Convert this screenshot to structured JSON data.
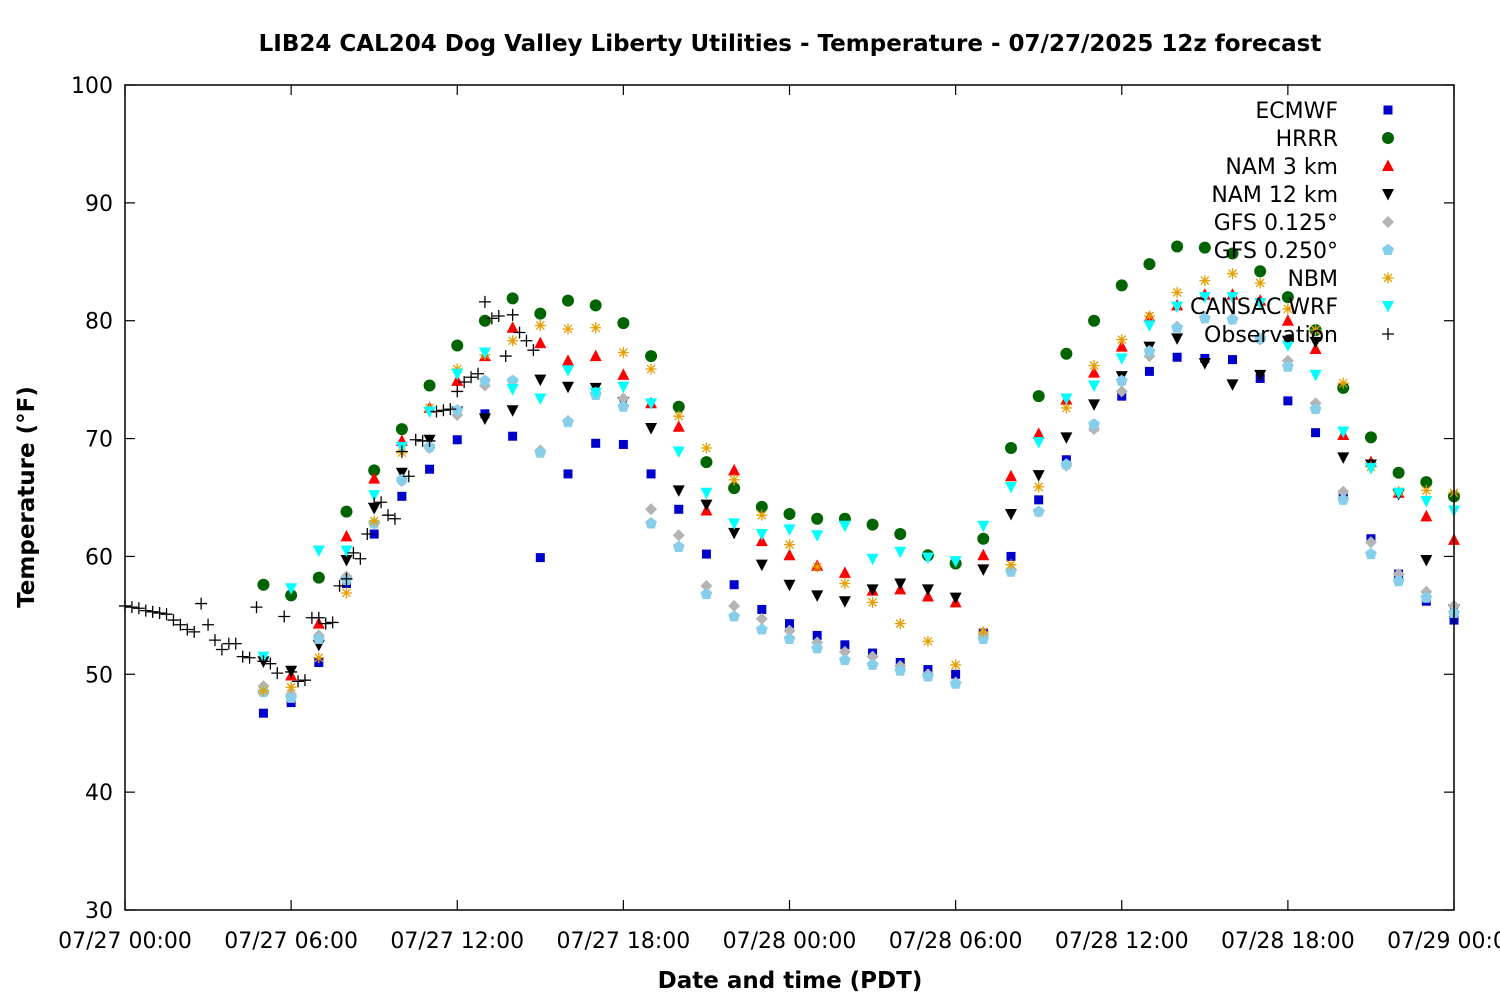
{
  "chart_data": {
    "type": "scatter",
    "title": "LIB24 CAL204 Dog Valley Liberty Utilities - Temperature - 07/27/2025 12z forecast",
    "xlabel": "Date and time (PDT)",
    "ylabel": "Temperature (°F)",
    "xlim": [
      0,
      48
    ],
    "ylim": [
      30,
      100
    ],
    "x_units": "hours since 07/27 00:00 PDT",
    "xticks": [
      {
        "x": 0,
        "label": "07/27 00:00"
      },
      {
        "x": 6,
        "label": "07/27 06:00"
      },
      {
        "x": 12,
        "label": "07/27 12:00"
      },
      {
        "x": 18,
        "label": "07/27 18:00"
      },
      {
        "x": 24,
        "label": "07/28 00:00"
      },
      {
        "x": 30,
        "label": "07/28 06:00"
      },
      {
        "x": 36,
        "label": "07/28 12:00"
      },
      {
        "x": 42,
        "label": "07/28 18:00"
      },
      {
        "x": 48,
        "label": "07/29 00:00"
      }
    ],
    "yticks": [
      30,
      40,
      50,
      60,
      70,
      80,
      90,
      100
    ],
    "grid": false,
    "legend_position": "top-right",
    "series": [
      {
        "name": "ECMWF",
        "color": "#0000cc",
        "marker": "square",
        "x": [
          5,
          6,
          7,
          8,
          9,
          10,
          11,
          12,
          13,
          14,
          15,
          16,
          17,
          18,
          19,
          20,
          21,
          22,
          23,
          24,
          25,
          26,
          27,
          28,
          29,
          30,
          31,
          32,
          33,
          34,
          35,
          36,
          37,
          38,
          39,
          40,
          41,
          42,
          43,
          44,
          45,
          46,
          47,
          48
        ],
        "y": [
          46.7,
          47.6,
          51.0,
          57.7,
          61.9,
          65.1,
          67.4,
          69.9,
          72.1,
          70.2,
          59.9,
          67.0,
          69.6,
          69.5,
          67.0,
          64.0,
          60.2,
          57.6,
          55.5,
          54.3,
          53.3,
          52.5,
          51.8,
          51.0,
          50.4,
          50.0,
          53.5,
          60.0,
          64.8,
          68.2,
          71.0,
          73.6,
          75.7,
          76.9,
          76.8,
          76.7,
          75.1,
          73.2,
          70.5,
          65.0,
          61.5,
          58.5,
          56.2,
          54.6
        ]
      },
      {
        "name": "HRRR",
        "color": "#006400",
        "marker": "circle",
        "x": [
          5,
          6,
          7,
          8,
          9,
          10,
          11,
          12,
          13,
          14,
          15,
          16,
          17,
          18,
          19,
          20,
          21,
          22,
          23,
          24,
          25,
          26,
          27,
          28,
          29,
          30,
          31,
          32,
          33,
          34,
          35,
          36,
          37,
          38,
          39,
          40,
          41,
          42,
          43,
          44,
          45,
          46,
          47,
          48
        ],
        "y": [
          57.6,
          56.7,
          58.2,
          63.8,
          67.3,
          70.8,
          74.5,
          77.9,
          80.0,
          81.9,
          80.6,
          81.7,
          81.3,
          79.8,
          77.0,
          72.7,
          68.0,
          65.8,
          64.2,
          63.6,
          63.2,
          63.2,
          62.7,
          61.9,
          60.1,
          59.4,
          61.5,
          69.2,
          73.6,
          77.2,
          80.0,
          83.0,
          84.8,
          86.3,
          86.2,
          85.7,
          84.2,
          82.0,
          79.2,
          74.3,
          70.1,
          67.1,
          66.3,
          65.1
        ]
      },
      {
        "name": "NAM 3 km",
        "color": "#ff0000",
        "marker": "triangle-up",
        "x": [
          5,
          6,
          7,
          8,
          9,
          10,
          11,
          12,
          13,
          14,
          15,
          16,
          17,
          18,
          19,
          20,
          21,
          22,
          23,
          24,
          25,
          26,
          27,
          28,
          29,
          30,
          31,
          32,
          33,
          34,
          35,
          36,
          37,
          38,
          39,
          40,
          41,
          42,
          43,
          44,
          45,
          46,
          47,
          48
        ],
        "y": [
          48.8,
          49.9,
          54.3,
          61.7,
          66.6,
          69.8,
          72.6,
          74.9,
          77.0,
          79.4,
          78.1,
          76.6,
          77.0,
          75.4,
          73.0,
          71.0,
          63.9,
          67.3,
          61.3,
          60.1,
          59.2,
          58.6,
          57.1,
          57.2,
          56.6,
          56.1,
          60.1,
          66.8,
          70.4,
          73.3,
          75.6,
          77.8,
          80.3,
          81.3,
          82.2,
          82.2,
          81.7,
          80.0,
          77.6,
          70.3,
          68.0,
          65.4,
          63.4,
          61.4
        ]
      },
      {
        "name": "NAM 12 km",
        "color": "#000000",
        "marker": "triangle-down",
        "x": [
          5,
          6,
          7,
          8,
          9,
          10,
          11,
          12,
          13,
          14,
          15,
          16,
          17,
          18,
          19,
          20,
          21,
          22,
          23,
          24,
          25,
          26,
          27,
          28,
          29,
          30,
          31,
          32,
          33,
          34,
          35,
          36,
          37,
          38,
          39,
          40,
          41,
          42,
          43,
          44,
          45,
          46,
          47,
          48
        ],
        "y": [
          51.1,
          50.3,
          52.5,
          59.7,
          64.1,
          67.1,
          69.9,
          72.3,
          71.7,
          72.4,
          75.0,
          74.4,
          74.3,
          73.1,
          70.9,
          65.6,
          64.4,
          62.0,
          59.3,
          57.6,
          56.7,
          56.2,
          57.2,
          57.7,
          57.2,
          56.5,
          58.9,
          63.6,
          66.9,
          70.1,
          72.9,
          75.3,
          77.8,
          78.5,
          76.4,
          74.6,
          75.4,
          78.3,
          78.2,
          68.4,
          67.8,
          65.3,
          59.7,
          55.5
        ]
      },
      {
        "name": "GFS 0.125°",
        "color": "#b4b4b4",
        "marker": "diamond",
        "x": [
          5,
          6,
          7,
          8,
          9,
          10,
          11,
          12,
          13,
          14,
          15,
          16,
          17,
          18,
          19,
          20,
          21,
          22,
          23,
          24,
          25,
          26,
          27,
          28,
          29,
          30,
          31,
          32,
          33,
          34,
          35,
          36,
          37,
          38,
          39,
          40,
          41,
          42,
          43,
          44,
          45,
          46,
          47,
          48
        ],
        "y": [
          49.0,
          48.3,
          53.3,
          58.3,
          62.8,
          66.4,
          69.2,
          72.0,
          74.5,
          74.9,
          69.0,
          71.5,
          73.9,
          73.4,
          64.0,
          61.8,
          57.5,
          55.8,
          54.7,
          53.7,
          52.7,
          51.9,
          51.5,
          50.7,
          50.0,
          49.3,
          53.4,
          58.9,
          63.8,
          67.7,
          70.8,
          74.0,
          77.0,
          79.5,
          80.3,
          80.2,
          78.4,
          76.6,
          73.0,
          65.5,
          61.2,
          58.5,
          57.0,
          55.8
        ]
      },
      {
        "name": "GFS 0.250°",
        "color": "#87ceeb",
        "marker": "pentagon",
        "x": [
          5,
          6,
          7,
          8,
          9,
          10,
          11,
          12,
          13,
          14,
          15,
          16,
          17,
          18,
          19,
          20,
          21,
          22,
          23,
          24,
          25,
          26,
          27,
          28,
          29,
          30,
          31,
          32,
          33,
          34,
          35,
          36,
          37,
          38,
          39,
          40,
          41,
          42,
          43,
          44,
          45,
          46,
          47,
          48
        ],
        "y": [
          48.5,
          48.0,
          53.0,
          58.0,
          62.8,
          66.5,
          69.3,
          72.4,
          74.9,
          74.9,
          68.8,
          71.4,
          73.7,
          72.7,
          62.8,
          60.8,
          56.8,
          54.9,
          53.8,
          53.0,
          52.2,
          51.2,
          50.8,
          50.3,
          49.8,
          49.2,
          53.0,
          58.7,
          63.8,
          67.8,
          71.2,
          74.9,
          77.4,
          79.4,
          80.2,
          80.1,
          78.5,
          76.1,
          72.5,
          64.8,
          60.2,
          57.9,
          56.5,
          55.2
        ]
      },
      {
        "name": "NBM",
        "color": "#e69f00",
        "marker": "star",
        "x": [
          5,
          6,
          7,
          8,
          9,
          10,
          11,
          12,
          13,
          14,
          15,
          16,
          17,
          18,
          19,
          20,
          21,
          22,
          23,
          24,
          25,
          26,
          27,
          28,
          29,
          30,
          31,
          32,
          33,
          34,
          35,
          36,
          37,
          38,
          39,
          40,
          41,
          42,
          43,
          44,
          45,
          46,
          47,
          48
        ],
        "y": [
          48.6,
          48.9,
          51.4,
          56.9,
          63.0,
          68.8,
          72.6,
          75.9,
          77.1,
          78.3,
          79.6,
          79.3,
          79.4,
          77.3,
          75.9,
          71.9,
          69.2,
          66.5,
          63.5,
          61.0,
          59.1,
          57.7,
          56.1,
          54.3,
          52.8,
          50.8,
          53.6,
          59.3,
          65.9,
          72.6,
          76.2,
          78.4,
          80.4,
          82.4,
          83.4,
          84.0,
          83.2,
          81.0,
          79.2,
          74.7,
          67.6,
          65.5,
          65.6,
          65.4
        ]
      },
      {
        "name": "CANSAC WRF",
        "color": "#00ffff",
        "marker": "triangle-down",
        "x": [
          5,
          6,
          7,
          8,
          9,
          10,
          11,
          12,
          13,
          14,
          15,
          16,
          17,
          18,
          19,
          20,
          21,
          22,
          23,
          24,
          25,
          26,
          27,
          28,
          29,
          30,
          31,
          32,
          33,
          34,
          35,
          36,
          37,
          38,
          39,
          40,
          41,
          42,
          43,
          44,
          45,
          46,
          47,
          48
        ],
        "y": [
          51.5,
          57.3,
          60.5,
          60.5,
          65.2,
          69.3,
          72.3,
          75.5,
          77.3,
          74.2,
          73.4,
          75.8,
          73.9,
          74.4,
          73.0,
          68.9,
          65.4,
          62.8,
          61.9,
          62.3,
          61.8,
          62.6,
          59.8,
          60.4,
          59.9,
          59.6,
          62.6,
          65.9,
          69.7,
          73.4,
          74.5,
          76.8,
          79.6,
          81.2,
          82.0,
          82.0,
          81.5,
          77.9,
          75.4,
          70.6,
          67.5,
          65.4,
          64.7,
          63.9
        ]
      },
      {
        "name": "Observation",
        "color": "#000000",
        "marker": "plus",
        "x": [
          0,
          0.25,
          0.5,
          0.75,
          1,
          1.25,
          1.5,
          1.75,
          2,
          2.25,
          2.5,
          2.75,
          3,
          3.25,
          3.5,
          3.75,
          4,
          4.25,
          4.5,
          4.75,
          5,
          5.25,
          5.5,
          5.75,
          6,
          6.25,
          6.5,
          6.75,
          7,
          7.25,
          7.5,
          7.75,
          8,
          8.25,
          8.5,
          8.75,
          9,
          9.25,
          9.5,
          9.75,
          10,
          10.25,
          10.5,
          10.75,
          11,
          11.25,
          11.5,
          11.75,
          12,
          12.25,
          12.5,
          12.75,
          13,
          13.25,
          13.5,
          13.75,
          14,
          14.25,
          14.5,
          14.75
        ],
        "y": [
          55.8,
          55.7,
          55.6,
          55.4,
          55.3,
          55.2,
          55.1,
          54.6,
          54.2,
          53.8,
          53.6,
          56.0,
          54.2,
          52.9,
          52.1,
          52.6,
          52.6,
          51.5,
          51.4,
          55.7,
          51.1,
          50.9,
          50.1,
          54.9,
          50.2,
          49.4,
          49.5,
          54.8,
          54.8,
          54.3,
          54.4,
          57.5,
          58.1,
          60.3,
          59.8,
          61.9,
          64.5,
          64.6,
          63.5,
          63.2,
          68.9,
          66.8,
          69.9,
          69.8,
          69.8,
          72.3,
          72.4,
          72.5,
          74.0,
          74.8,
          75.2,
          75.5,
          81.6,
          80.2,
          80.4,
          77.0,
          80.5,
          79.0,
          78.3,
          77.5
        ]
      }
    ]
  }
}
